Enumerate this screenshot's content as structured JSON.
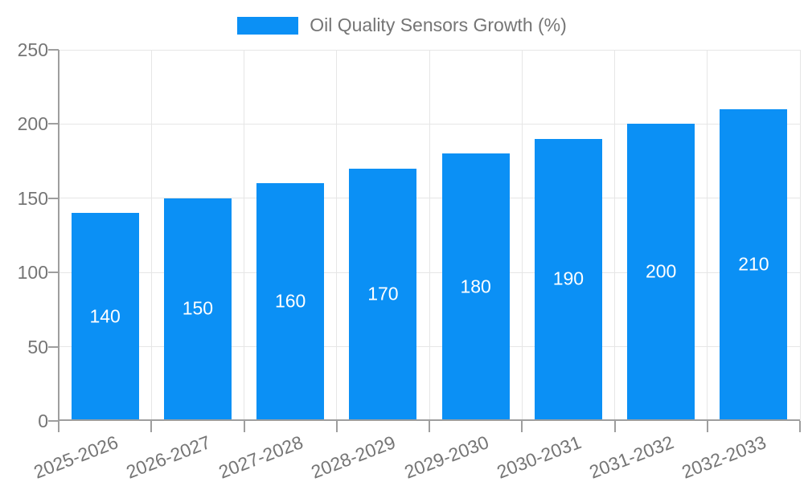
{
  "legend": {
    "label": "Oil Quality Sensors Growth (%)"
  },
  "chart_data": {
    "type": "bar",
    "title": "",
    "series_name": "Oil Quality Sensors Growth (%)",
    "categories": [
      "2025-2026",
      "2026-2027",
      "2027-2028",
      "2028-2029",
      "2029-2030",
      "2030-2031",
      "2031-2032",
      "2032-2033"
    ],
    "values": [
      140,
      150,
      160,
      170,
      180,
      190,
      200,
      210
    ],
    "xlabel": "",
    "ylabel": "",
    "ylim": [
      0,
      250
    ],
    "yticks": [
      0,
      50,
      100,
      150,
      200,
      250
    ],
    "grid": true,
    "legend_position": "top-center",
    "value_label_position": "inside-middle",
    "x_label_rotation_deg": -21
  },
  "colors": {
    "bar": "#0b90f5",
    "grid": "#e6e6e6",
    "axis": "#9e9e9e",
    "text": "#757575",
    "value_label": "#ffffff",
    "background": "#ffffff"
  }
}
